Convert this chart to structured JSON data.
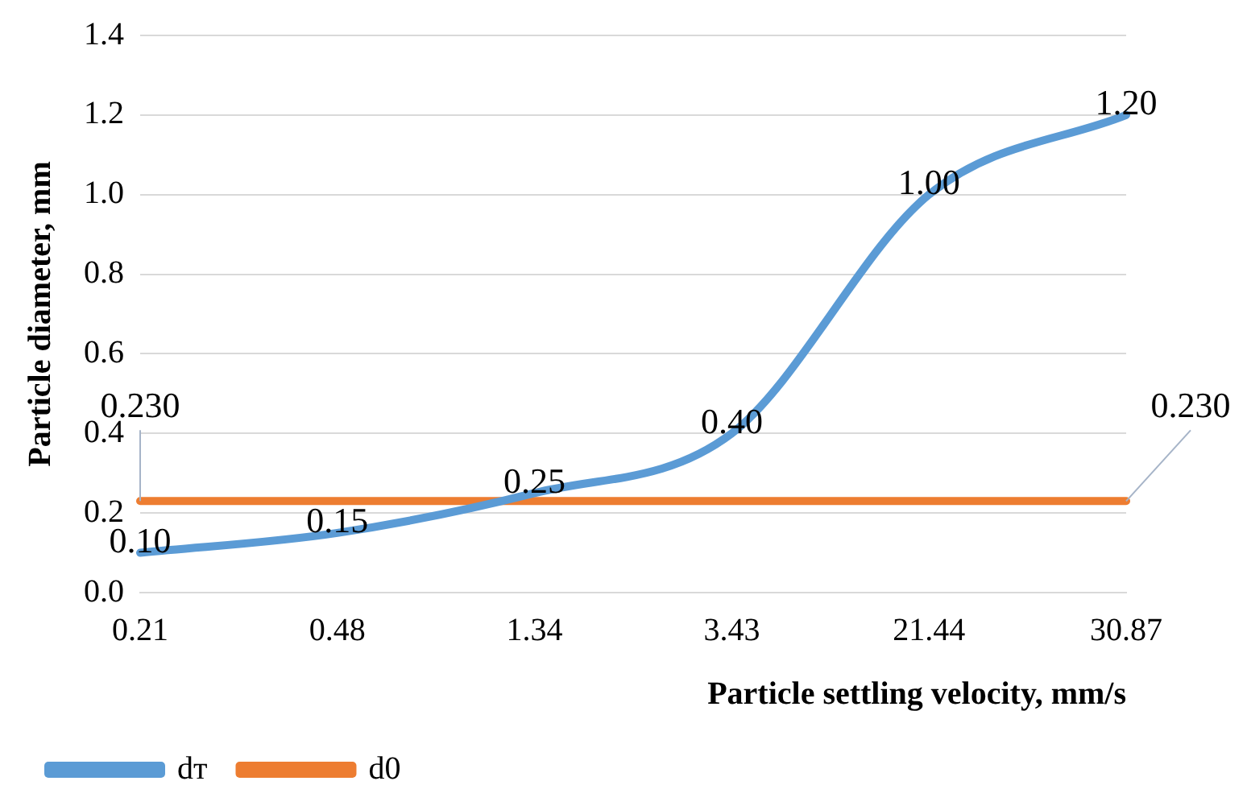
{
  "chart_data": {
    "type": "line",
    "xlabel": "Particle settling velocity, mm/s",
    "ylabel": "Particle diameter, mm",
    "categories": [
      "0.21",
      "0.48",
      "1.34",
      "3.43",
      "21.44",
      "30.87"
    ],
    "series": [
      {
        "name": "dт",
        "color": "#5b9bd5",
        "values": [
          0.1,
          0.15,
          0.25,
          0.4,
          1.0,
          1.2
        ],
        "value_labels": [
          "0.10",
          "0.15",
          "0.25",
          "0.40",
          "1.00",
          "1.20"
        ]
      },
      {
        "name": "d0",
        "color": "#ed7d31",
        "values": [
          0.23,
          0.23,
          0.23,
          0.23,
          0.23,
          0.23
        ],
        "value_labels": [
          "0.230",
          null,
          null,
          null,
          null,
          "0.230"
        ]
      }
    ],
    "ylim": [
      0,
      1.4
    ],
    "yticks": [
      {
        "value": 0,
        "label": "0.0"
      },
      {
        "value": 0.2,
        "label": "0.2"
      },
      {
        "value": 0.4,
        "label": "0.4"
      },
      {
        "value": 0.6,
        "label": "0.6"
      },
      {
        "value": 0.8,
        "label": "0.8"
      },
      {
        "value": 1.0,
        "label": "1.0"
      },
      {
        "value": 1.2,
        "label": "1.2"
      },
      {
        "value": 1.4,
        "label": "1.4"
      }
    ],
    "grid": "y",
    "legend": "bottom",
    "marker": "none",
    "line_style": "solid"
  }
}
